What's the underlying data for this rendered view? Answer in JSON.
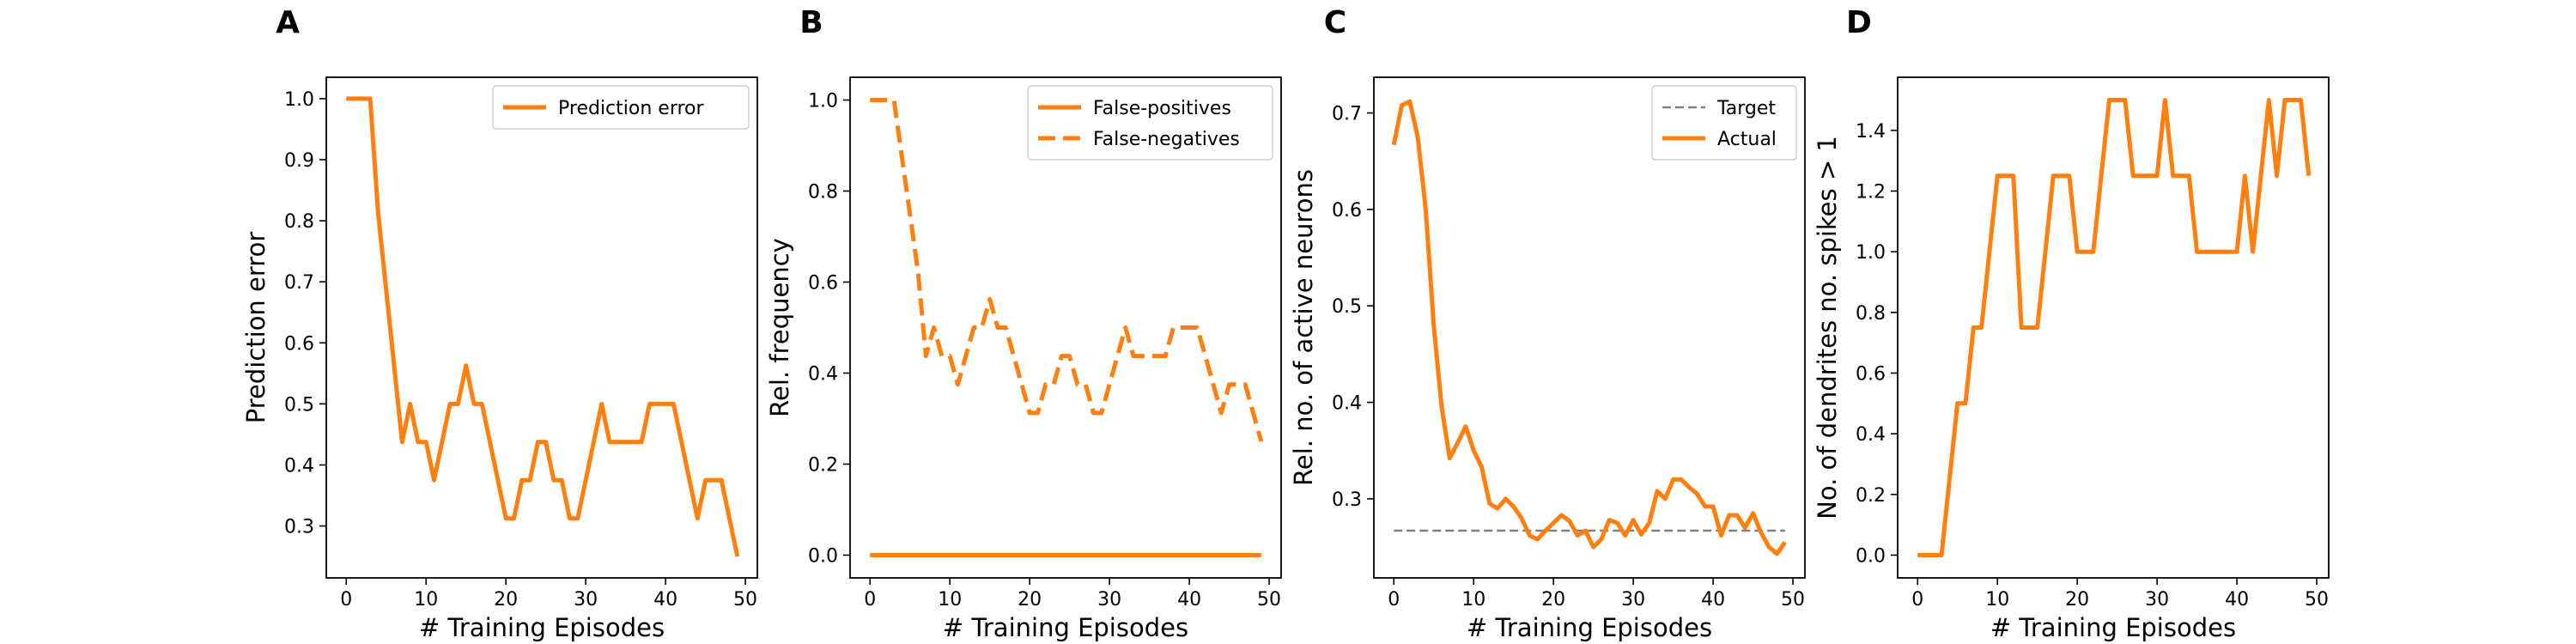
{
  "colors": {
    "orange": "#ff7f0e",
    "target": "#808080",
    "axis": "#000000"
  },
  "chart_data": [
    {
      "panel": "A",
      "type": "line",
      "xlabel": "# Training Episodes",
      "ylabel": "Prediction error",
      "xlim": [
        -2.5,
        51.5
      ],
      "ylim": [
        0.215,
        1.035
      ],
      "xticks": [
        0,
        10,
        20,
        30,
        40,
        50
      ],
      "yticks": [
        0.3,
        0.4,
        0.5,
        0.6,
        0.7,
        0.8,
        0.9,
        1.0
      ],
      "ytick_labels": [
        "0.3",
        "0.4",
        "0.5",
        "0.6",
        "0.7",
        "0.8",
        "0.9",
        "1.0"
      ],
      "legend_position": "upper-right",
      "series": [
        {
          "name": "Prediction error",
          "style": "solid",
          "color": "#ff7f0e",
          "x": [
            0,
            1,
            2,
            3,
            4,
            5,
            6,
            7,
            8,
            9,
            10,
            11,
            12,
            13,
            14,
            15,
            16,
            17,
            18,
            19,
            20,
            21,
            22,
            23,
            24,
            25,
            26,
            27,
            28,
            29,
            30,
            31,
            32,
            33,
            34,
            35,
            36,
            37,
            38,
            39,
            40,
            41,
            42,
            43,
            44,
            45,
            46,
            47,
            48,
            49
          ],
          "y": [
            1.0,
            1.0,
            1.0,
            1.0,
            0.8125,
            0.6875,
            0.5625,
            0.4375,
            0.5,
            0.4375,
            0.4375,
            0.375,
            0.4375,
            0.5,
            0.5,
            0.5625,
            0.5,
            0.5,
            0.4375,
            0.375,
            0.3125,
            0.3125,
            0.375,
            0.375,
            0.4375,
            0.4375,
            0.375,
            0.375,
            0.3125,
            0.3125,
            0.375,
            0.4375,
            0.5,
            0.4375,
            0.4375,
            0.4375,
            0.4375,
            0.4375,
            0.5,
            0.5,
            0.5,
            0.5,
            0.4375,
            0.375,
            0.3125,
            0.375,
            0.375,
            0.375,
            0.3125,
            0.25
          ]
        }
      ]
    },
    {
      "panel": "B",
      "type": "line",
      "xlabel": "# Training Episodes",
      "ylabel": "Rel. frequency",
      "xlim": [
        -2.5,
        51.5
      ],
      "ylim": [
        -0.05,
        1.05
      ],
      "xticks": [
        0,
        10,
        20,
        30,
        40,
        50
      ],
      "yticks": [
        0.0,
        0.2,
        0.4,
        0.6,
        0.8,
        1.0
      ],
      "ytick_labels": [
        "0.0",
        "0.2",
        "0.4",
        "0.6",
        "0.8",
        "1.0"
      ],
      "legend_position": "upper-right",
      "series": [
        {
          "name": "False-positives",
          "style": "solid",
          "color": "#ff7f0e",
          "x": [
            0,
            49
          ],
          "y": [
            0.0,
            0.0
          ]
        },
        {
          "name": "False-negatives",
          "style": "dashed",
          "color": "#ff7f0e",
          "x": [
            0,
            1,
            2,
            3,
            4,
            5,
            6,
            7,
            8,
            9,
            10,
            11,
            12,
            13,
            14,
            15,
            16,
            17,
            18,
            19,
            20,
            21,
            22,
            23,
            24,
            25,
            26,
            27,
            28,
            29,
            30,
            31,
            32,
            33,
            34,
            35,
            36,
            37,
            38,
            39,
            40,
            41,
            42,
            43,
            44,
            45,
            46,
            47,
            48,
            49
          ],
          "y": [
            1.0,
            1.0,
            1.0,
            1.0,
            0.875,
            0.75,
            0.625,
            0.4375,
            0.5,
            0.4375,
            0.4375,
            0.375,
            0.4375,
            0.5,
            0.5,
            0.5625,
            0.5,
            0.5,
            0.4375,
            0.375,
            0.3125,
            0.3125,
            0.375,
            0.375,
            0.4375,
            0.4375,
            0.375,
            0.375,
            0.3125,
            0.3125,
            0.375,
            0.4375,
            0.5,
            0.4375,
            0.4375,
            0.4375,
            0.4375,
            0.4375,
            0.5,
            0.5,
            0.5,
            0.5,
            0.4375,
            0.375,
            0.3125,
            0.375,
            0.375,
            0.375,
            0.3125,
            0.25
          ]
        }
      ]
    },
    {
      "panel": "C",
      "type": "line",
      "xlabel": "# Training Episodes",
      "ylabel": "Rel. no. of active neurons",
      "xlim": [
        -2.5,
        51.5
      ],
      "ylim": [
        0.218,
        0.737
      ],
      "xticks": [
        0,
        10,
        20,
        30,
        40,
        50
      ],
      "yticks": [
        0.3,
        0.4,
        0.5,
        0.6,
        0.7
      ],
      "ytick_labels": [
        "0.3",
        "0.4",
        "0.5",
        "0.6",
        "0.7"
      ],
      "legend_position": "upper-right",
      "series": [
        {
          "name": "Target",
          "style": "dashed",
          "color": "#808080",
          "x": [
            0,
            49
          ],
          "y": [
            0.267,
            0.267
          ]
        },
        {
          "name": "Actual",
          "style": "solid",
          "color": "#ff7f0e",
          "x": [
            0,
            1,
            2,
            3,
            4,
            5,
            6,
            7,
            8,
            9,
            10,
            11,
            12,
            13,
            14,
            15,
            16,
            17,
            18,
            19,
            20,
            21,
            22,
            23,
            24,
            25,
            26,
            27,
            28,
            29,
            30,
            31,
            32,
            33,
            34,
            35,
            36,
            37,
            38,
            39,
            40,
            41,
            42,
            43,
            44,
            45,
            46,
            47,
            48,
            49
          ],
          "y": [
            0.667,
            0.708,
            0.712,
            0.675,
            0.6,
            0.48,
            0.395,
            0.342,
            0.358,
            0.375,
            0.35,
            0.333,
            0.295,
            0.29,
            0.3,
            0.292,
            0.28,
            0.262,
            0.258,
            0.267,
            0.275,
            0.283,
            0.277,
            0.262,
            0.267,
            0.25,
            0.258,
            0.278,
            0.275,
            0.262,
            0.278,
            0.263,
            0.275,
            0.308,
            0.3,
            0.32,
            0.32,
            0.312,
            0.305,
            0.292,
            0.292,
            0.262,
            0.283,
            0.283,
            0.27,
            0.285,
            0.265,
            0.25,
            0.243,
            0.255
          ]
        }
      ]
    },
    {
      "panel": "D",
      "type": "line",
      "xlabel": "# Training Episodes",
      "ylabel": "No. of dendrites no. spikes > 1",
      "xlim": [
        -2.5,
        51.5
      ],
      "ylim": [
        -0.075,
        1.575
      ],
      "xticks": [
        0,
        10,
        20,
        30,
        40,
        50
      ],
      "yticks": [
        0.0,
        0.2,
        0.4,
        0.6,
        0.8,
        1.0,
        1.2,
        1.4
      ],
      "ytick_labels": [
        "0.0",
        "0.2",
        "0.4",
        "0.6",
        "0.8",
        "1.0",
        "1.2",
        "1.4"
      ],
      "legend_position": "none",
      "series": [
        {
          "name": "",
          "style": "solid",
          "color": "#ff7f0e",
          "x": [
            0,
            1,
            2,
            3,
            4,
            5,
            6,
            7,
            8,
            9,
            10,
            11,
            12,
            13,
            14,
            15,
            16,
            17,
            18,
            19,
            20,
            21,
            22,
            23,
            24,
            25,
            26,
            27,
            28,
            29,
            30,
            31,
            32,
            33,
            34,
            35,
            36,
            37,
            38,
            39,
            40,
            41,
            42,
            43,
            44,
            45,
            46,
            47,
            48,
            49
          ],
          "y": [
            0.0,
            0.0,
            0.0,
            0.0,
            0.25,
            0.5,
            0.5,
            0.75,
            0.75,
            1.0,
            1.25,
            1.25,
            1.25,
            0.75,
            0.75,
            0.75,
            1.0,
            1.25,
            1.25,
            1.25,
            1.0,
            1.0,
            1.0,
            1.25,
            1.5,
            1.5,
            1.5,
            1.25,
            1.25,
            1.25,
            1.25,
            1.5,
            1.25,
            1.25,
            1.25,
            1.0,
            1.0,
            1.0,
            1.0,
            1.0,
            1.0,
            1.25,
            1.0,
            1.25,
            1.5,
            1.25,
            1.5,
            1.5,
            1.5,
            1.25
          ]
        }
      ]
    }
  ]
}
